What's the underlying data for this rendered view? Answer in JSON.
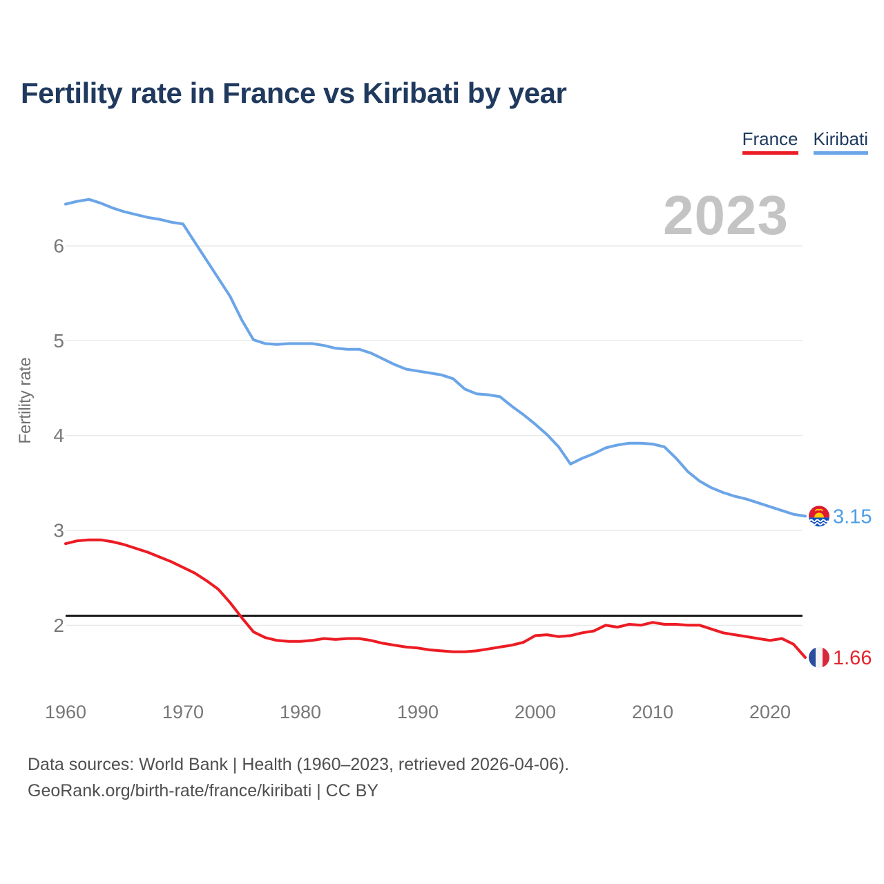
{
  "title": "Fertility rate in France vs Kiribati by year",
  "legend": {
    "items": [
      {
        "label": "France",
        "color": "#ec1c24"
      },
      {
        "label": "Kiribati",
        "color": "#6ba5e7"
      }
    ]
  },
  "watermark": "2023",
  "end_labels": {
    "kiribati": {
      "value": "3.15",
      "text_color": "#4d9de6"
    },
    "france": {
      "value": "1.66",
      "text_color": "#e5242d"
    }
  },
  "source": {
    "line1": "Data sources: World Bank | Health (1960–2023, retrieved 2026-04-06).",
    "line2": "GeoRank.org/birth-rate/france/kiribati | CC BY"
  },
  "chart_data": {
    "type": "line",
    "title": "Fertility rate in France vs Kiribati by year",
    "xlabel": "",
    "ylabel": "Fertility rate",
    "xlim": [
      1960,
      2023
    ],
    "ylim": [
      1.55,
      6.75
    ],
    "grid": "horizontal",
    "yticks": [
      2,
      3,
      4,
      5,
      6
    ],
    "xticks": [
      1960,
      1970,
      1980,
      1990,
      2000,
      2010,
      2020
    ],
    "reference_line": {
      "value": 2.1,
      "color": "#141414"
    },
    "x": [
      1960,
      1961,
      1962,
      1963,
      1964,
      1965,
      1966,
      1967,
      1968,
      1969,
      1970,
      1971,
      1972,
      1973,
      1974,
      1975,
      1976,
      1977,
      1978,
      1979,
      1980,
      1981,
      1982,
      1983,
      1984,
      1985,
      1986,
      1987,
      1988,
      1989,
      1990,
      1991,
      1992,
      1993,
      1994,
      1995,
      1996,
      1997,
      1998,
      1999,
      2000,
      2001,
      2002,
      2003,
      2004,
      2005,
      2006,
      2007,
      2008,
      2009,
      2010,
      2011,
      2012,
      2013,
      2014,
      2015,
      2016,
      2017,
      2018,
      2019,
      2020,
      2021,
      2022,
      2023
    ],
    "series": [
      {
        "name": "Kiribati",
        "color": "#6ba5e7",
        "end_label": "3.15",
        "final_year": 2023,
        "values": [
          6.44,
          6.47,
          6.49,
          6.45,
          6.4,
          6.36,
          6.33,
          6.3,
          6.28,
          6.25,
          6.23,
          6.04,
          5.85,
          5.66,
          5.47,
          5.22,
          5.01,
          4.97,
          4.96,
          4.97,
          4.97,
          4.97,
          4.95,
          4.92,
          4.91,
          4.91,
          4.87,
          4.81,
          4.75,
          4.7,
          4.68,
          4.66,
          4.64,
          4.6,
          4.49,
          4.44,
          4.43,
          4.41,
          4.31,
          4.22,
          4.12,
          4.01,
          3.88,
          3.7,
          3.76,
          3.81,
          3.87,
          3.9,
          3.92,
          3.92,
          3.91,
          3.88,
          3.76,
          3.62,
          3.52,
          3.45,
          3.4,
          3.36,
          3.33,
          3.29,
          3.25,
          3.21,
          3.17,
          3.15
        ]
      },
      {
        "name": "France",
        "color": "#ec1c24",
        "end_label": "1.66",
        "final_year": 2023,
        "values": [
          2.86,
          2.89,
          2.9,
          2.9,
          2.88,
          2.85,
          2.81,
          2.77,
          2.72,
          2.67,
          2.61,
          2.55,
          2.47,
          2.38,
          2.24,
          2.08,
          1.93,
          1.87,
          1.84,
          1.83,
          1.83,
          1.84,
          1.86,
          1.85,
          1.86,
          1.86,
          1.84,
          1.81,
          1.79,
          1.77,
          1.76,
          1.74,
          1.73,
          1.72,
          1.72,
          1.73,
          1.75,
          1.77,
          1.79,
          1.82,
          1.89,
          1.9,
          1.88,
          1.89,
          1.92,
          1.94,
          2.0,
          1.98,
          2.01,
          2.0,
          2.03,
          2.01,
          2.01,
          2.0,
          2.0,
          1.96,
          1.92,
          1.9,
          1.88,
          1.86,
          1.84,
          1.86,
          1.8,
          1.66
        ]
      }
    ],
    "flag_colors": {
      "kiribati": {
        "red": "#dd1a30",
        "blue": "#0b50c0",
        "gold": "#ffce00",
        "wave": "#ffffff"
      },
      "france": {
        "blue": "#2a4d9e",
        "white": "#f4f4f4",
        "red": "#d7293d"
      }
    },
    "axis_text_color": "#777777",
    "grid_color": "#e5e5e5",
    "watermark_color": "#c4c4c4"
  }
}
